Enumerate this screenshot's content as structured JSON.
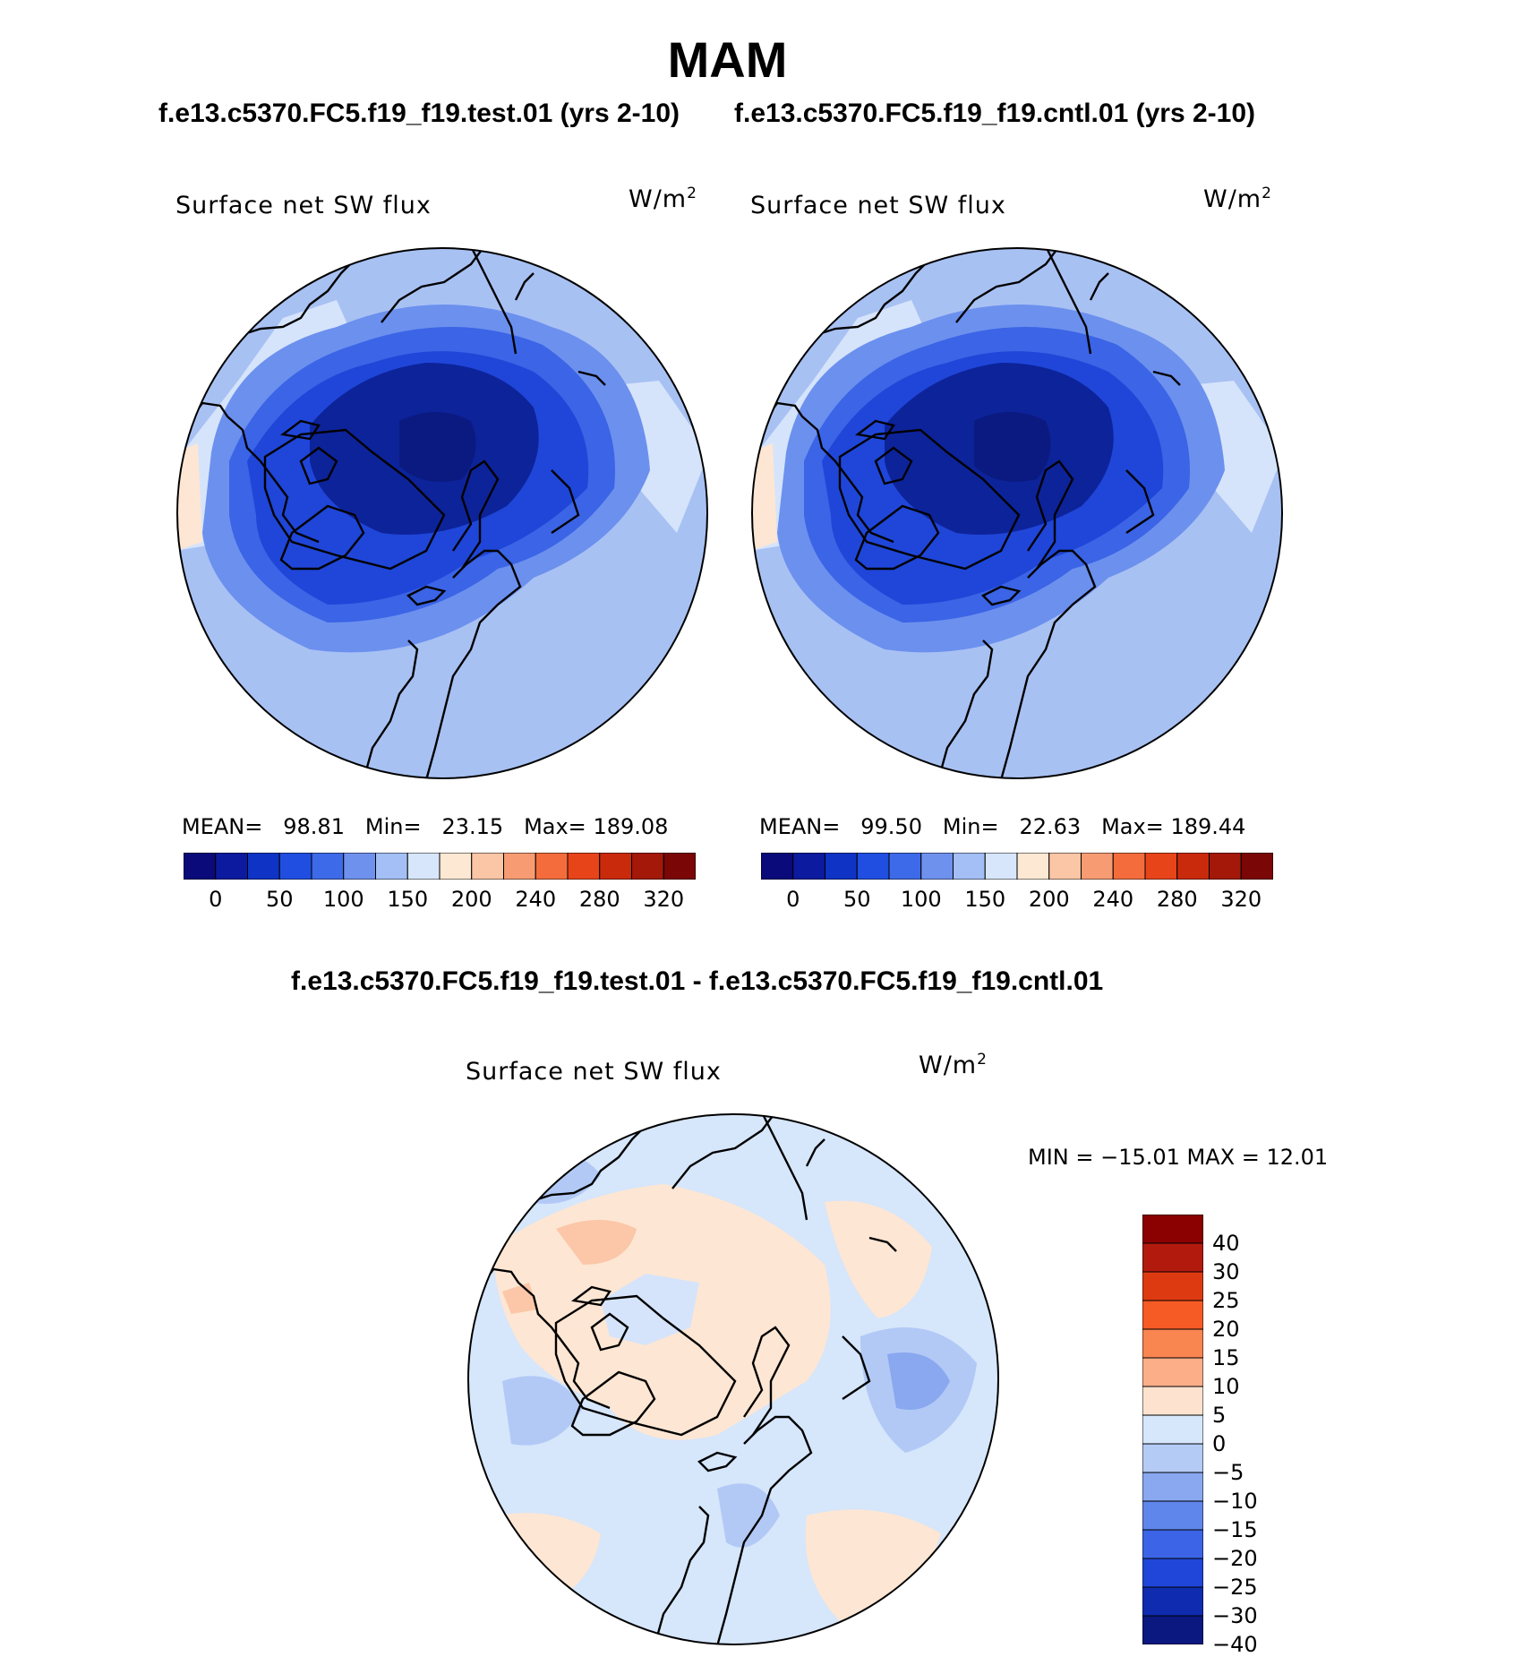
{
  "figure": {
    "title": "MAM",
    "subtitle_left": "f.e13.c5370.FC5.f19_f19.test.01 (yrs 2-10)",
    "subtitle_right": "f.e13.c5370.FC5.f19_f19.cntl.01 (yrs 2-10)",
    "diff_title": "f.e13.c5370.FC5.f19_f19.test.01 - f.e13.c5370.FC5.f19_f19.cntl.01"
  },
  "panels": [
    {
      "variable": "Surface net SW flux",
      "units_base": "W/m",
      "units_exp": "2",
      "mean_label": "MEAN=",
      "mean": "98.81",
      "min_label": "Min=",
      "min": "23.15",
      "max_label": "Max=",
      "max": "189.08"
    },
    {
      "variable": "Surface net SW flux",
      "units_base": "W/m",
      "units_exp": "2",
      "mean_label": "MEAN=",
      "mean": "99.50",
      "min_label": "Min=",
      "min": "22.63",
      "max_label": "Max=",
      "max": "189.44"
    }
  ],
  "diff_panel": {
    "variable": "Surface net SW flux",
    "units_base": "W/m",
    "units_exp": "2",
    "minmax_text": "MIN = −15.01 MAX =   12.01"
  },
  "colorbar_abs": {
    "colors": [
      "#0a0a7a",
      "#0b1a9e",
      "#0f33c4",
      "#1f4ee0",
      "#3d6ae8",
      "#6e91ee",
      "#a4bff5",
      "#d8e6fb",
      "#fde8d4",
      "#fbc6a6",
      "#f79b72",
      "#f56c3c",
      "#e8441a",
      "#c92a0c",
      "#a31808",
      "#7a0606"
    ],
    "tick_labels": [
      "0",
      "50",
      "100",
      "150",
      "200",
      "240",
      "280",
      "320"
    ]
  },
  "colorbar_diff": {
    "colors_top_to_bottom": [
      "#8b0000",
      "#b31a0e",
      "#de3a12",
      "#f65a25",
      "#f98550",
      "#fbae88",
      "#fde3cf",
      "#d6e6fb",
      "#b4cbf6",
      "#89a8f0",
      "#5f86eb",
      "#3b64e6",
      "#1f46d8",
      "#0f2cb0",
      "#0a1880"
    ],
    "tick_labels": [
      "40",
      "30",
      "25",
      "20",
      "15",
      "10",
      "5",
      "0",
      "−5",
      "−10",
      "−15",
      "−20",
      "−25",
      "−30",
      "−40"
    ]
  },
  "map_colors": {
    "bg_abs": "#a8c1f3",
    "bg_diff": "#d6e6fb",
    "arctic_deep": "#0d239a",
    "arctic_core": "#0b1a80",
    "ring_dark": "#1f46d8",
    "ring_mid": "#3b64e6",
    "ring_light": "#6c90ee",
    "pale": "#d5e4fb",
    "warm": "#fde6d3",
    "warm2": "#fbc7a8",
    "cool": "#b2c9f6",
    "cool2": "#8aa8f0"
  }
}
